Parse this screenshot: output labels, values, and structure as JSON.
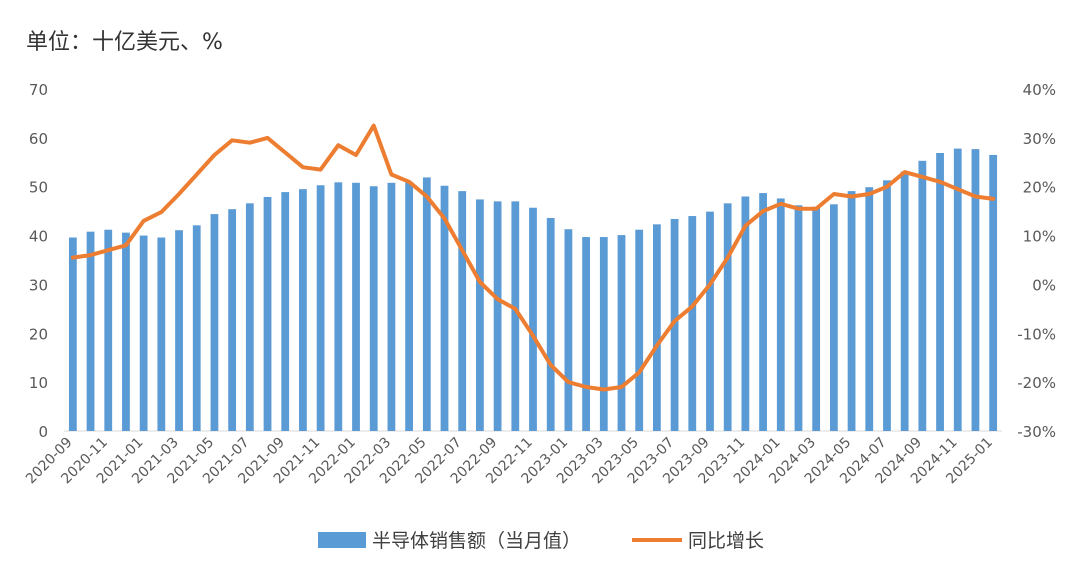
{
  "unit_label": "单位：十亿美元、%",
  "chart_data": {
    "type": "bar",
    "x": [
      "2020-09",
      "2020-10",
      "2020-11",
      "2020-12",
      "2021-01",
      "2021-02",
      "2021-03",
      "2021-04",
      "2021-05",
      "2021-06",
      "2021-07",
      "2021-08",
      "2021-09",
      "2021-10",
      "2021-11",
      "2021-12",
      "2022-01",
      "2022-02",
      "2022-03",
      "2022-04",
      "2022-05",
      "2022-06",
      "2022-07",
      "2022-08",
      "2022-09",
      "2022-10",
      "2022-11",
      "2022-12",
      "2023-01",
      "2023-02",
      "2023-03",
      "2023-04",
      "2023-05",
      "2023-06",
      "2023-07",
      "2023-08",
      "2023-09",
      "2023-10",
      "2023-11",
      "2023-12",
      "2024-01",
      "2024-02",
      "2024-03",
      "2024-04",
      "2024-05",
      "2024-06",
      "2024-07",
      "2024-08",
      "2024-09",
      "2024-10",
      "2024-11",
      "2024-12",
      "2025-01"
    ],
    "x_tick_labels": [
      "2020-09",
      "2020-11",
      "2021-01",
      "2021-03",
      "2021-05",
      "2021-07",
      "2021-09",
      "2021-11",
      "2022-01",
      "2022-03",
      "2022-05",
      "2022-07",
      "2022-09",
      "2022-11",
      "2023-01",
      "2023-03",
      "2023-05",
      "2023-07",
      "2023-09",
      "2023-11",
      "2024-01",
      "2024-03",
      "2024-05",
      "2024-07",
      "2024-09",
      "2024-11",
      "2025-01"
    ],
    "series": [
      {
        "name": "半导体销售额（当月值）",
        "type": "bar",
        "axis": "left",
        "color": "#5b9bd5",
        "values": [
          39.6,
          40.8,
          41.2,
          40.6,
          40.0,
          39.6,
          41.1,
          42.1,
          44.4,
          45.4,
          46.6,
          47.9,
          48.9,
          49.5,
          50.3,
          50.9,
          50.8,
          50.1,
          50.8,
          50.9,
          51.9,
          50.2,
          49.1,
          47.4,
          47.0,
          47.0,
          45.7,
          43.6,
          41.3,
          39.7,
          39.7,
          40.1,
          41.2,
          42.3,
          43.4,
          44.0,
          44.9,
          46.6,
          48.0,
          48.7,
          47.6,
          46.2,
          45.9,
          46.4,
          49.1,
          49.9,
          51.3,
          53.1,
          55.3,
          56.9,
          57.8,
          57.7,
          56.5
        ]
      },
      {
        "name": "同比增长",
        "type": "line",
        "axis": "right",
        "color": "#ed7d31",
        "values": [
          5.5,
          6.0,
          7.0,
          8.0,
          13.0,
          14.8,
          18.5,
          22.5,
          26.5,
          29.5,
          29.0,
          30.0,
          27.0,
          24.0,
          23.5,
          28.5,
          26.5,
          32.5,
          22.5,
          21.0,
          18.0,
          13.5,
          7.0,
          0.5,
          -3.0,
          -5.0,
          -10.5,
          -16.5,
          -20.0,
          -21.0,
          -21.5,
          -21.0,
          -18.0,
          -12.5,
          -7.5,
          -4.5,
          0.0,
          5.5,
          12.0,
          15.0,
          16.5,
          15.5,
          15.5,
          18.5,
          18.0,
          18.5,
          20.0,
          23.0,
          22.0,
          21.0,
          19.5,
          18.0,
          17.5
        ]
      }
    ],
    "y_left": {
      "min": 0,
      "max": 70,
      "ticks": [
        0,
        10,
        20,
        30,
        40,
        50,
        60,
        70
      ]
    },
    "y_right": {
      "min": -30,
      "max": 40,
      "ticks": [
        "-30%",
        "-20%",
        "-10%",
        "0%",
        "10%",
        "20%",
        "30%",
        "40%"
      ]
    },
    "legend_position": "bottom",
    "grid": false
  }
}
